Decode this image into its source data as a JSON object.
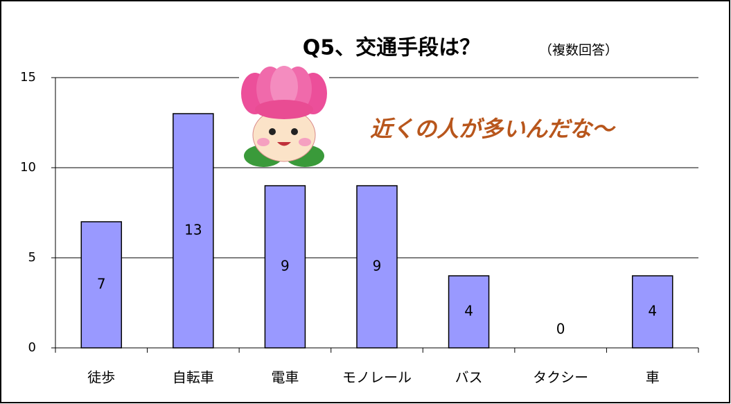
{
  "chart_data": {
    "type": "bar",
    "title": "Q5、交通手段は？",
    "subtitle": "（複数回答）",
    "annotation": "近くの人が多いんだな～",
    "categories": [
      "徒歩",
      "自転車",
      "電車",
      "モノレール",
      "バス",
      "タクシー",
      "車"
    ],
    "values": [
      7,
      13,
      9,
      9,
      4,
      0,
      4
    ],
    "color": "#9999ff",
    "ylim": [
      0,
      15
    ],
    "yticks": [
      0,
      5,
      10,
      15
    ],
    "grid": true
  }
}
